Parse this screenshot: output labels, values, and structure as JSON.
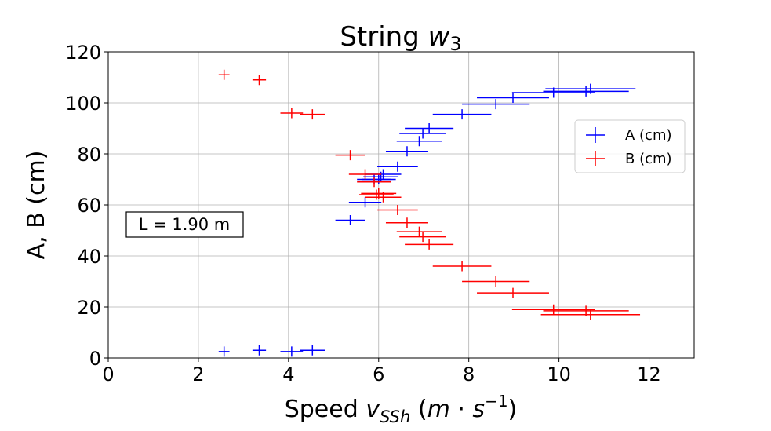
{
  "chart_data": {
    "type": "errorbar-scatter",
    "title": "String",
    "title_math_var": "w",
    "title_math_sub": "3",
    "xlabel": "Speed",
    "xlabel_math": "v",
    "xlabel_math_sub": "SSh",
    "xlabel_units_open": "(",
    "xlabel_units_m": "m",
    "xlabel_units_dot": " · ",
    "xlabel_units_s": "s",
    "xlabel_units_exp": "−1",
    "xlabel_units_close": ")",
    "ylabel": "A, B (cm)",
    "xlim": [
      0,
      13
    ],
    "ylim": [
      0,
      120
    ],
    "xticks": [
      0,
      2,
      4,
      6,
      8,
      10,
      12
    ],
    "yticks": [
      0,
      20,
      40,
      60,
      80,
      100,
      120
    ],
    "grid": true,
    "legend_position": "right",
    "annotation": "L = 1.90 m",
    "series": [
      {
        "name": "A (cm)",
        "color": "#0000ff",
        "points": [
          {
            "x": 2.57,
            "y": 2.5,
            "xerr": 0.12,
            "yerr": 2
          },
          {
            "x": 3.35,
            "y": 3.0,
            "xerr": 0.15,
            "yerr": 2
          },
          {
            "x": 4.07,
            "y": 2.5,
            "xerr": 0.25,
            "yerr": 2
          },
          {
            "x": 4.53,
            "y": 3.0,
            "xerr": 0.28,
            "yerr": 2
          },
          {
            "x": 5.37,
            "y": 54,
            "xerr": 0.33,
            "yerr": 2
          },
          {
            "x": 5.7,
            "y": 61,
            "xerr": 0.36,
            "yerr": 2
          },
          {
            "x": 5.9,
            "y": 70,
            "xerr": 0.38,
            "yerr": 2
          },
          {
            "x": 6.0,
            "y": 70,
            "xerr": 0.38,
            "yerr": 2
          },
          {
            "x": 6.05,
            "y": 71,
            "xerr": 0.39,
            "yerr": 2
          },
          {
            "x": 6.1,
            "y": 72,
            "xerr": 0.4,
            "yerr": 2
          },
          {
            "x": 6.42,
            "y": 75,
            "xerr": 0.45,
            "yerr": 2
          },
          {
            "x": 6.63,
            "y": 81,
            "xerr": 0.47,
            "yerr": 2
          },
          {
            "x": 6.9,
            "y": 85,
            "xerr": 0.5,
            "yerr": 2
          },
          {
            "x": 6.98,
            "y": 88,
            "xerr": 0.52,
            "yerr": 2
          },
          {
            "x": 7.12,
            "y": 90,
            "xerr": 0.54,
            "yerr": 2
          },
          {
            "x": 7.85,
            "y": 95.5,
            "xerr": 0.65,
            "yerr": 2
          },
          {
            "x": 8.6,
            "y": 99.5,
            "xerr": 0.75,
            "yerr": 2
          },
          {
            "x": 8.98,
            "y": 102,
            "xerr": 0.8,
            "yerr": 2
          },
          {
            "x": 9.88,
            "y": 104,
            "xerr": 0.92,
            "yerr": 2
          },
          {
            "x": 10.6,
            "y": 104.5,
            "xerr": 0.95,
            "yerr": 2
          },
          {
            "x": 10.7,
            "y": 105.5,
            "xerr": 1.0,
            "yerr": 2
          }
        ]
      },
      {
        "name": "B (cm)",
        "color": "#ff0000",
        "points": [
          {
            "x": 2.57,
            "y": 111,
            "xerr": 0.12,
            "yerr": 2
          },
          {
            "x": 3.35,
            "y": 109,
            "xerr": 0.15,
            "yerr": 2
          },
          {
            "x": 4.07,
            "y": 96,
            "xerr": 0.25,
            "yerr": 2
          },
          {
            "x": 4.53,
            "y": 95.5,
            "xerr": 0.28,
            "yerr": 2
          },
          {
            "x": 5.37,
            "y": 79.5,
            "xerr": 0.33,
            "yerr": 2
          },
          {
            "x": 5.7,
            "y": 72,
            "xerr": 0.36,
            "yerr": 2
          },
          {
            "x": 5.9,
            "y": 69,
            "xerr": 0.38,
            "yerr": 2
          },
          {
            "x": 5.95,
            "y": 64,
            "xerr": 0.38,
            "yerr": 2
          },
          {
            "x": 6.0,
            "y": 64.5,
            "xerr": 0.39,
            "yerr": 2
          },
          {
            "x": 6.1,
            "y": 63,
            "xerr": 0.4,
            "yerr": 2
          },
          {
            "x": 6.42,
            "y": 58,
            "xerr": 0.45,
            "yerr": 2
          },
          {
            "x": 6.63,
            "y": 53,
            "xerr": 0.47,
            "yerr": 2
          },
          {
            "x": 6.9,
            "y": 49.5,
            "xerr": 0.5,
            "yerr": 2
          },
          {
            "x": 6.98,
            "y": 47.5,
            "xerr": 0.52,
            "yerr": 2
          },
          {
            "x": 7.12,
            "y": 44.5,
            "xerr": 0.54,
            "yerr": 2
          },
          {
            "x": 7.85,
            "y": 36,
            "xerr": 0.65,
            "yerr": 2
          },
          {
            "x": 8.6,
            "y": 30,
            "xerr": 0.75,
            "yerr": 2
          },
          {
            "x": 8.98,
            "y": 25.5,
            "xerr": 0.8,
            "yerr": 2
          },
          {
            "x": 9.88,
            "y": 19,
            "xerr": 0.92,
            "yerr": 2
          },
          {
            "x": 10.6,
            "y": 18.5,
            "xerr": 0.95,
            "yerr": 2
          },
          {
            "x": 10.7,
            "y": 17,
            "xerr": 1.1,
            "yerr": 2
          }
        ]
      }
    ]
  }
}
